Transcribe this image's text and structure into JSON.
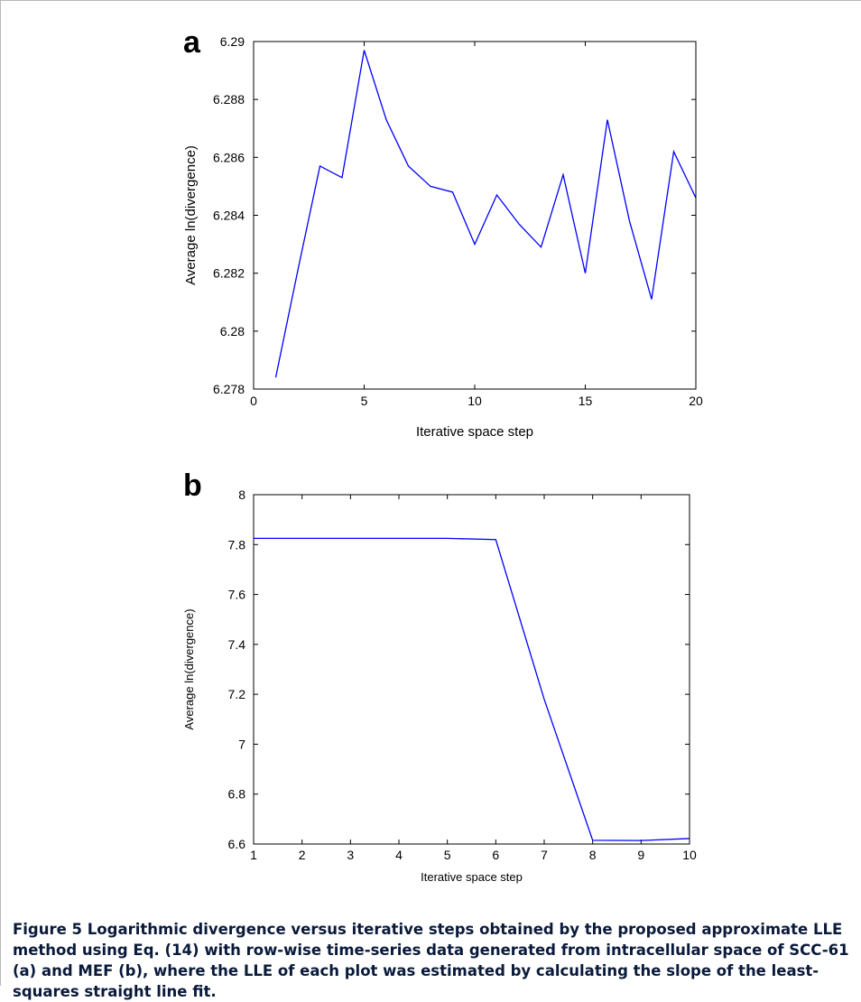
{
  "panels": [
    {
      "letter": "a"
    },
    {
      "letter": "b"
    }
  ],
  "caption": "Figure 5 Logarithmic divergence versus iterative steps obtained by the proposed approximate LLE method using Eq. (14) with row-wise time-series data generated from intracellular space of SCC-61 (a) and MEF (b), where the LLE of each plot was estimated by calculating the slope of the least-squares straight line fit.",
  "colors": {
    "series": "#0000ff",
    "caption": "#0a1a3a"
  },
  "chart_data": [
    {
      "type": "line",
      "title": "",
      "xlabel": "Iterative space step",
      "ylabel": "Average ln(divergence)",
      "xlim": [
        0,
        20
      ],
      "ylim": [
        6.278,
        6.29
      ],
      "xticks": [
        0,
        5,
        10,
        15,
        20
      ],
      "xtick_labels": [
        "0",
        "5",
        "10",
        "15",
        "20"
      ],
      "yticks": [
        6.278,
        6.28,
        6.282,
        6.284,
        6.286,
        6.288,
        6.29
      ],
      "ytick_labels": [
        "6.278",
        "6.28",
        "6.282",
        "6.284",
        "6.286",
        "6.288",
        "6.29"
      ],
      "grid": false,
      "series": [
        {
          "x": [
            1,
            2,
            3,
            4,
            5,
            6,
            7,
            8,
            9,
            10,
            11,
            12,
            13,
            14,
            15,
            16,
            17,
            18,
            19,
            20
          ],
          "y": [
            6.2784,
            6.2821,
            6.2857,
            6.2853,
            6.2897,
            6.2873,
            6.2857,
            6.285,
            6.2848,
            6.283,
            6.2847,
            6.2837,
            6.2829,
            6.2854,
            6.282,
            6.2873,
            6.2838,
            6.2811,
            6.2862,
            6.2846
          ]
        }
      ]
    },
    {
      "type": "line",
      "title": "",
      "xlabel": "Iterative space step",
      "ylabel": "Average ln(divergence)",
      "xlim": [
        1,
        10
      ],
      "ylim": [
        6.6,
        8
      ],
      "xticks": [
        1,
        2,
        3,
        4,
        5,
        6,
        7,
        8,
        9,
        10
      ],
      "xtick_labels": [
        "1",
        "2",
        "3",
        "4",
        "5",
        "6",
        "7",
        "8",
        "9",
        "10"
      ],
      "yticks": [
        6.6,
        6.8,
        7,
        7.2,
        7.4,
        7.6,
        7.8,
        8
      ],
      "ytick_labels": [
        "6.6",
        "6.8",
        "7",
        "7.2",
        "7.4",
        "7.6",
        "7.8",
        "8"
      ],
      "grid": false,
      "series": [
        {
          "x": [
            1,
            2,
            3,
            4,
            5,
            6,
            7,
            8,
            9,
            10
          ],
          "y": [
            7.825,
            7.825,
            7.825,
            7.825,
            7.825,
            7.82,
            7.18,
            6.615,
            6.614,
            6.622
          ]
        }
      ]
    }
  ]
}
